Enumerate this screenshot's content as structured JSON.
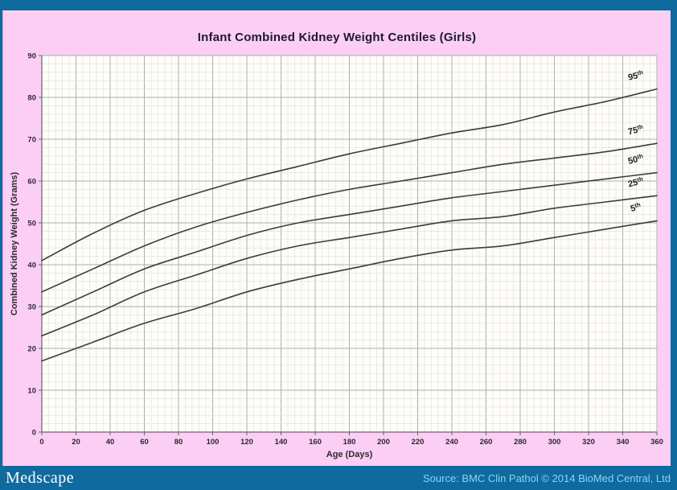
{
  "window": {
    "title": "Infant Combined Kidney Weight Centiles (Girls)"
  },
  "footer": {
    "brand": "Medscape",
    "source": "Source: BMC Clin Pathol © 2014 BioMed Central, Ltd"
  },
  "colors": {
    "frame_blue": "#0f6a9f",
    "panel_pink": "#fccef5",
    "plot_bg": "#fefdf8",
    "grid_minor": "#dddddd",
    "grid_major": "#aeaeae",
    "axis": "#666666",
    "curve": "#3c3c3c",
    "tick_text": "#2b2b2b",
    "title_text": "#1c1b2e",
    "footer_brand_text": "#ffffff",
    "footer_source_text": "#8ed2f2"
  },
  "chart_data": {
    "type": "line",
    "title": "Infant Combined Kidney Weight Centiles (Girls)",
    "xlabel": "Age (Days)",
    "ylabel": "Combined Kidney Weight (Grams)",
    "xlim": [
      0,
      360
    ],
    "ylim": [
      0,
      90
    ],
    "x_tick_step": 20,
    "y_tick_step": 10,
    "x_minor_step": 4,
    "y_minor_step": 2,
    "grid": true,
    "legend_position": "end-of-line-labels",
    "x": [
      0,
      30,
      60,
      90,
      120,
      150,
      180,
      210,
      240,
      270,
      300,
      330,
      360
    ],
    "series": [
      {
        "name": "95th",
        "values": [
          41,
          47.5,
          53,
          57,
          60.5,
          63.5,
          66.5,
          69,
          71.5,
          73.5,
          76.5,
          79,
          82
        ]
      },
      {
        "name": "75th",
        "values": [
          33.5,
          39,
          44.5,
          49,
          52.5,
          55.5,
          58,
          60,
          62,
          64,
          65.5,
          67,
          69
        ]
      },
      {
        "name": "50th",
        "values": [
          28,
          33.5,
          39,
          43,
          47,
          50,
          52,
          54,
          56,
          57.5,
          59,
          60.5,
          62
        ]
      },
      {
        "name": "25th",
        "values": [
          23,
          28,
          33.5,
          37.5,
          41.5,
          44.5,
          46.5,
          48.5,
          50.5,
          51.5,
          53.5,
          55,
          56.5
        ]
      },
      {
        "name": "5th",
        "values": [
          17,
          21.5,
          26,
          29.5,
          33.5,
          36.5,
          39,
          41.5,
          43.5,
          44.5,
          46.5,
          48.5,
          50.5
        ]
      }
    ]
  }
}
